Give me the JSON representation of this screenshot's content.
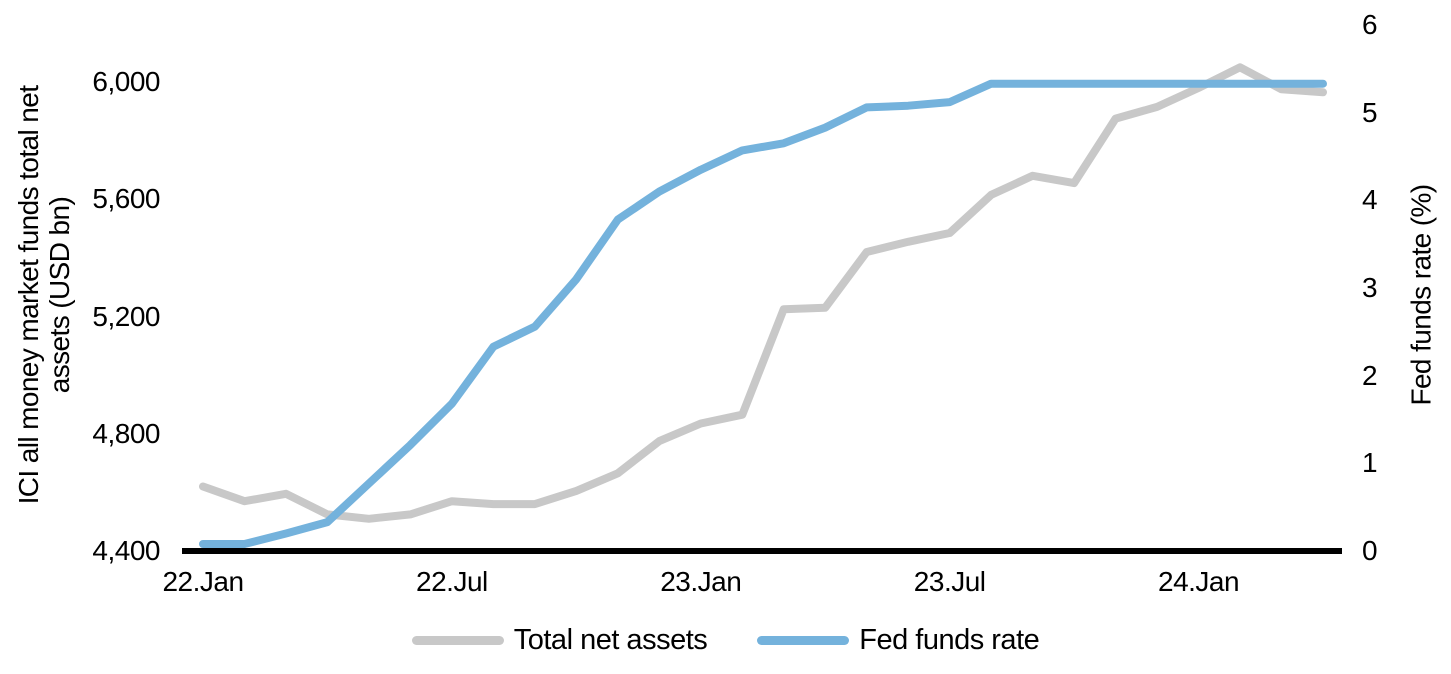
{
  "chart_data": {
    "type": "line",
    "title": "",
    "categories": [
      "22.Jan",
      "22.Feb",
      "22.Mar",
      "22.Apr",
      "22.May",
      "22.Jun",
      "22.Jul",
      "22.Aug",
      "22.Sep",
      "22.Oct",
      "22.Nov",
      "22.Dec",
      "23.Jan",
      "23.Feb",
      "23.Mar",
      "23.Apr",
      "23.May",
      "23.Jun",
      "23.Jul",
      "23.Aug",
      "23.Sep",
      "23.Oct",
      "23.Nov",
      "23.Dec",
      "24.Jan",
      "24.Feb",
      "24.Mar",
      "24.Apr"
    ],
    "series": [
      {
        "name": "Total net assets",
        "axis": "left",
        "color": "#c8c8c8",
        "values": [
          4620,
          4570,
          4595,
          4525,
          4510,
          4525,
          4570,
          4560,
          4560,
          4605,
          4665,
          4775,
          4835,
          4865,
          5225,
          5230,
          5420,
          5455,
          5485,
          5615,
          5680,
          5655,
          5875,
          5915,
          5980,
          6050,
          5975,
          5965
        ]
      },
      {
        "name": "Fed funds rate",
        "axis": "right",
        "color": "#74b2dc",
        "values": [
          0.08,
          0.08,
          0.2,
          0.33,
          0.77,
          1.21,
          1.68,
          2.33,
          2.56,
          3.1,
          3.78,
          4.1,
          4.35,
          4.57,
          4.65,
          4.83,
          5.06,
          5.08,
          5.12,
          5.33,
          5.33,
          5.33,
          5.33,
          5.33,
          5.33,
          5.33,
          5.33,
          5.33
        ]
      }
    ],
    "x_axis": {
      "tick_labels": [
        "22.Jan",
        "22.Jul",
        "23.Jan",
        "23.Jul",
        "24.Jan"
      ],
      "tick_category_indices": [
        0,
        6,
        12,
        18,
        24
      ]
    },
    "left_axis": {
      "title": "ICI all money market funds total net assets (USD bn)",
      "title_line1": "ICI all money market funds total net",
      "title_line2": "assets (USD bn)",
      "tick_labels": [
        "4,400",
        "4,800",
        "5,200",
        "5,600",
        "6,000"
      ],
      "tick_values": [
        4400,
        4800,
        5200,
        5600,
        6000
      ],
      "min": 4400,
      "max": 6000
    },
    "right_axis": {
      "title": "Fed funds rate (%)",
      "tick_labels": [
        "0",
        "1",
        "2",
        "3",
        "4",
        "5",
        "6"
      ],
      "tick_values": [
        0,
        1,
        2,
        3,
        4,
        5,
        6
      ],
      "min": 0,
      "max": 6
    },
    "legend_position": "bottom",
    "grid": false,
    "axis_line_color": "#000000"
  },
  "legend": {
    "items": [
      {
        "label": "Total net assets",
        "color": "#c8c8c8"
      },
      {
        "label": "Fed funds rate",
        "color": "#74b2dc"
      }
    ]
  }
}
